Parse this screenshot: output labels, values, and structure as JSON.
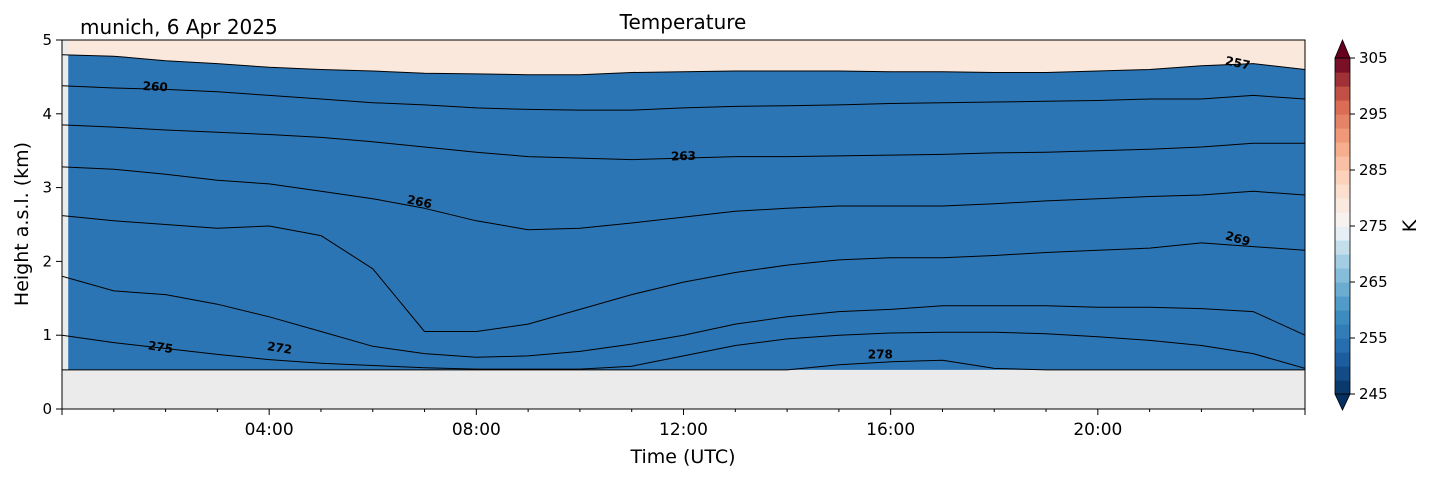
{
  "header": {
    "location_date": "munich, 6 Apr 2025",
    "title": "Temperature"
  },
  "chart_data": {
    "type": "heatmap",
    "title": "Temperature",
    "xlabel": "Time (UTC)",
    "ylabel": "Height a.s.l. (km)",
    "x_range_hours": [
      0,
      24
    ],
    "ylim": [
      0,
      5
    ],
    "x_ticks": [
      {
        "hour": 4,
        "label": "04:00"
      },
      {
        "hour": 8,
        "label": "08:00"
      },
      {
        "hour": 12,
        "label": "12:00"
      },
      {
        "hour": 16,
        "label": "16:00"
      },
      {
        "hour": 20,
        "label": "20:00"
      }
    ],
    "y_ticks": [
      0,
      1,
      2,
      3,
      4,
      5
    ],
    "no_data_below_km": 0.53,
    "no_data_color": "#ebebeb",
    "colorbar": {
      "label": "K",
      "vmin": 245,
      "vmax": 305,
      "step": 2.5,
      "ticks": [
        245,
        255,
        265,
        275,
        285,
        295,
        305
      ],
      "extend": "both",
      "colormap": "RdBu_r"
    },
    "contour_lines": [
      {
        "level": 257,
        "heights_km": [
          4.8,
          4.78,
          4.72,
          4.68,
          4.63,
          4.6,
          4.58,
          4.55,
          4.54,
          4.53,
          4.53,
          4.56,
          4.57,
          4.58,
          4.58,
          4.58,
          4.57,
          4.57,
          4.56,
          4.56,
          4.58,
          4.6,
          4.65,
          4.68,
          4.6
        ]
      },
      {
        "level": 260,
        "heights_km": [
          4.38,
          4.35,
          4.33,
          4.3,
          4.25,
          4.2,
          4.15,
          4.12,
          4.08,
          4.06,
          4.05,
          4.05,
          4.08,
          4.1,
          4.11,
          4.12,
          4.14,
          4.15,
          4.16,
          4.17,
          4.18,
          4.2,
          4.2,
          4.25,
          4.2
        ]
      },
      {
        "level": 263,
        "heights_km": [
          3.85,
          3.82,
          3.78,
          3.75,
          3.72,
          3.68,
          3.62,
          3.55,
          3.48,
          3.42,
          3.4,
          3.38,
          3.4,
          3.42,
          3.42,
          3.43,
          3.44,
          3.45,
          3.47,
          3.48,
          3.5,
          3.52,
          3.55,
          3.6,
          3.6
        ]
      },
      {
        "level": 266,
        "heights_km": [
          3.28,
          3.25,
          3.18,
          3.1,
          3.05,
          2.95,
          2.85,
          2.72,
          2.55,
          2.43,
          2.45,
          2.52,
          2.6,
          2.68,
          2.72,
          2.75,
          2.75,
          2.75,
          2.78,
          2.82,
          2.85,
          2.88,
          2.9,
          2.95,
          2.9
        ]
      },
      {
        "level": 269,
        "heights_km": [
          2.62,
          2.55,
          2.5,
          2.45,
          2.48,
          2.35,
          1.9,
          1.05,
          1.05,
          1.15,
          1.35,
          1.55,
          1.72,
          1.85,
          1.95,
          2.02,
          2.05,
          2.05,
          2.08,
          2.12,
          2.15,
          2.18,
          2.25,
          2.2,
          2.15
        ]
      },
      {
        "level": 272,
        "heights_km": [
          1.8,
          1.6,
          1.55,
          1.42,
          1.25,
          1.05,
          0.85,
          0.75,
          0.7,
          0.72,
          0.78,
          0.88,
          1.0,
          1.15,
          1.25,
          1.32,
          1.35,
          1.4,
          1.4,
          1.4,
          1.38,
          1.38,
          1.36,
          1.32,
          1.0
        ]
      },
      {
        "level": 275,
        "heights_km": [
          1.0,
          0.9,
          0.82,
          0.74,
          0.67,
          0.62,
          0.59,
          0.56,
          0.54,
          0.54,
          0.54,
          0.58,
          0.72,
          0.86,
          0.95,
          1.0,
          1.03,
          1.04,
          1.04,
          1.02,
          0.98,
          0.93,
          0.86,
          0.75,
          0.55
        ]
      },
      {
        "level": 278,
        "heights_km": [
          0.53,
          0.53,
          0.53,
          0.53,
          0.53,
          0.53,
          0.53,
          0.53,
          0.53,
          0.53,
          0.53,
          0.53,
          0.53,
          0.53,
          0.53,
          0.6,
          0.64,
          0.66,
          0.55,
          0.53,
          0.53,
          0.53,
          0.53,
          0.53,
          0.53
        ]
      }
    ],
    "contour_labels": [
      {
        "text": "257",
        "hour": 22.7,
        "km": 4.68,
        "angle": 12
      },
      {
        "text": "260",
        "hour": 1.8,
        "km": 4.36,
        "angle": 3
      },
      {
        "text": "263",
        "hour": 12.0,
        "km": 3.42,
        "angle": -2
      },
      {
        "text": "266",
        "hour": 6.9,
        "km": 2.8,
        "angle": 12
      },
      {
        "text": "269",
        "hour": 22.7,
        "km": 2.3,
        "angle": 16
      },
      {
        "text": "272",
        "hour": 4.2,
        "km": 0.82,
        "angle": 9
      },
      {
        "text": "275",
        "hour": 1.9,
        "km": 0.83,
        "angle": 9
      },
      {
        "text": "278",
        "hour": 15.8,
        "km": 0.73,
        "angle": 0
      }
    ]
  }
}
